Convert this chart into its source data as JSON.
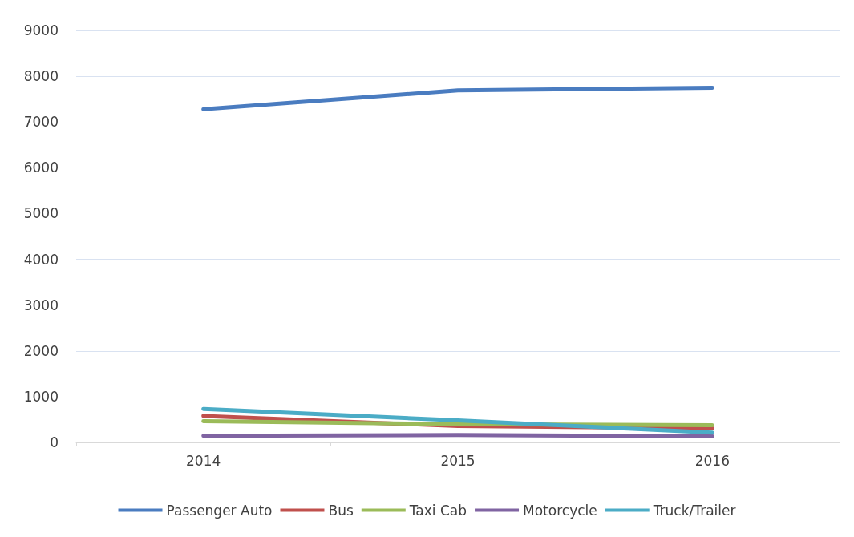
{
  "chart_data": {
    "type": "line",
    "categories": [
      "2014",
      "2015",
      "2016"
    ],
    "series": [
      {
        "name": "Passenger Auto",
        "color": "#4a7cc0",
        "values": [
          7280,
          7690,
          7750
        ]
      },
      {
        "name": "Bus",
        "color": "#c0504d",
        "values": [
          580,
          357,
          310
        ]
      },
      {
        "name": "Taxi Cab",
        "color": "#9bbb59",
        "values": [
          464,
          400,
          375
        ]
      },
      {
        "name": "Motorcycle",
        "color": "#8064a2",
        "values": [
          143,
          160,
          134
        ]
      },
      {
        "name": "Truck/Trailer",
        "color": "#4bacc6",
        "values": [
          732,
          482,
          214
        ]
      }
    ],
    "ylim": [
      0,
      9000
    ],
    "yticks": [
      0,
      1000,
      2000,
      3000,
      4000,
      5000,
      6000,
      7000,
      8000,
      9000
    ],
    "grid": "y",
    "legend": "bottom",
    "marker": "none",
    "line_style": "solid"
  }
}
